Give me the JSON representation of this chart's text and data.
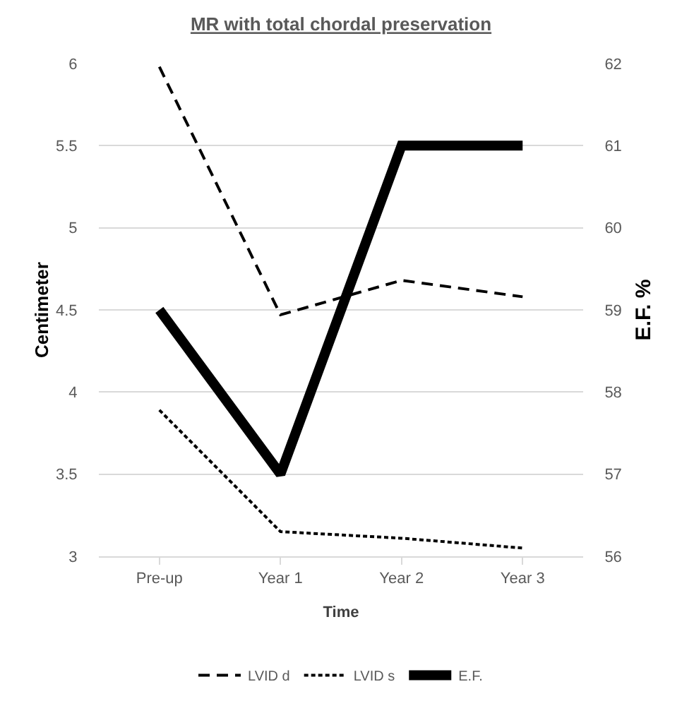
{
  "chart_data": {
    "type": "line",
    "title": "MR with total chordal preservation",
    "xlabel": "Time",
    "ylabel": "Centimeter",
    "y2label": "E.F. %",
    "categories": [
      "Pre-up",
      "Year 1",
      "Year 2",
      "Year 3"
    ],
    "series": [
      {
        "name": "LVID d",
        "color": "#000000",
        "line_style": "dashed",
        "values": [
          5.98,
          4.47,
          4.68,
          4.58
        ]
      },
      {
        "name": "LVID s",
        "color": "#000000",
        "line_style": "dotted",
        "values": [
          3.89,
          3.15,
          3.11,
          3.05
        ]
      },
      {
        "name": "E.F.",
        "color": "#000000",
        "line_style": "solid",
        "axis": "y2",
        "values": [
          59,
          57,
          61,
          61
        ]
      }
    ],
    "ylim": [
      3,
      6
    ],
    "yticks": [
      3,
      3.5,
      4,
      4.5,
      5,
      5.5,
      6
    ],
    "y2lim": [
      56,
      62
    ],
    "y2ticks": [
      56,
      57,
      58,
      59,
      60,
      61,
      62
    ],
    "grid": "y",
    "legend": "bottom",
    "marker": "none"
  }
}
